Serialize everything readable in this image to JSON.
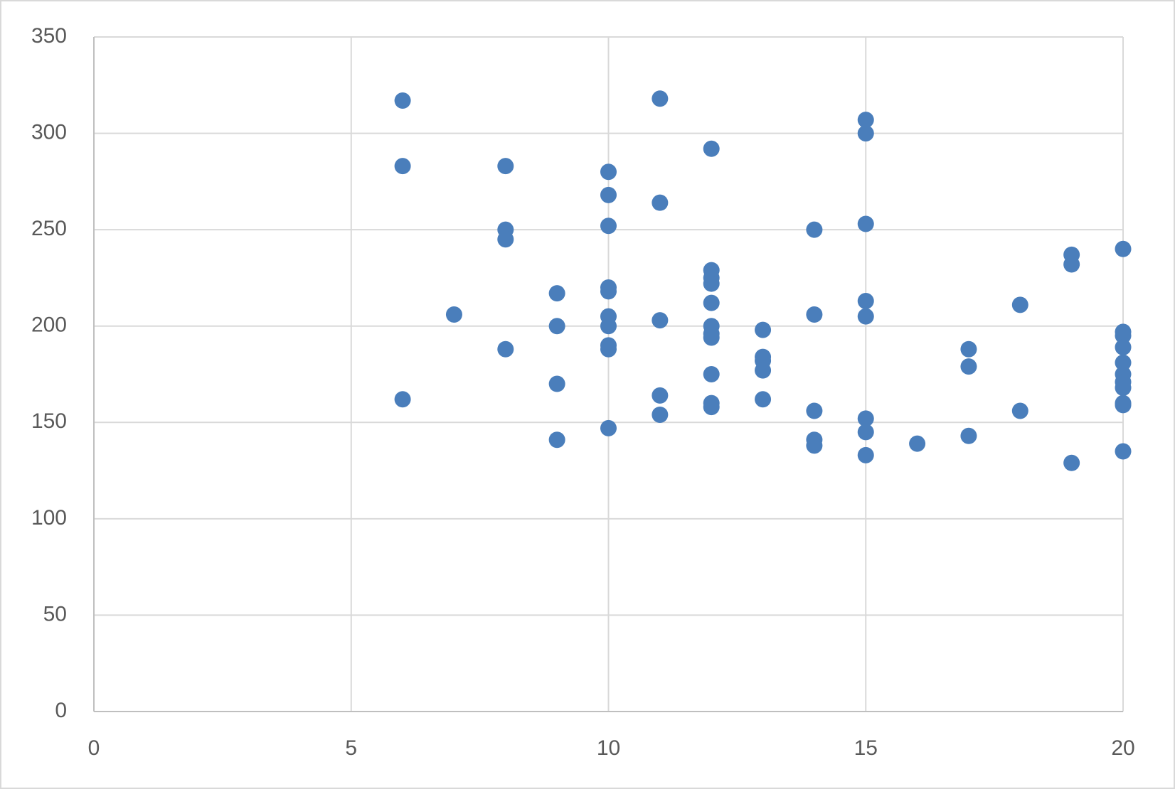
{
  "chart_data": {
    "type": "scatter",
    "color": "#4a7ebb",
    "grid": true,
    "x": [
      6,
      6,
      6,
      7,
      8,
      8,
      8,
      8,
      9,
      9,
      9,
      9,
      10,
      10,
      10,
      10,
      10,
      10,
      10,
      10,
      10,
      10,
      11,
      11,
      11,
      11,
      11,
      12,
      12,
      12,
      12,
      12,
      12,
      12,
      12,
      12,
      12,
      12,
      13,
      13,
      13,
      13,
      13,
      14,
      14,
      14,
      14,
      14,
      15,
      15,
      15,
      15,
      15,
      15,
      15,
      15,
      16,
      17,
      17,
      17,
      18,
      18,
      19,
      19,
      19,
      20,
      20,
      20,
      20,
      20,
      20,
      20,
      20,
      20,
      20,
      20
    ],
    "values": [
      317,
      283,
      162,
      206,
      283,
      250,
      245,
      188,
      217,
      200,
      170,
      141,
      280,
      268,
      252,
      220,
      218,
      205,
      200,
      190,
      188,
      147,
      318,
      264,
      203,
      164,
      154,
      292,
      229,
      225,
      222,
      212,
      200,
      196,
      194,
      175,
      160,
      158,
      198,
      184,
      182,
      177,
      162,
      250,
      206,
      156,
      141,
      138,
      307,
      300,
      253,
      213,
      205,
      152,
      145,
      133,
      139,
      188,
      179,
      143,
      211,
      156,
      237,
      232,
      129,
      240,
      197,
      195,
      189,
      181,
      175,
      171,
      168,
      160,
      159,
      135
    ],
    "xlim": [
      0,
      20
    ],
    "xticks": [
      0,
      5,
      10,
      15,
      20
    ],
    "ylim": [
      0,
      350
    ],
    "yticks": [
      0,
      50,
      100,
      150,
      200,
      250,
      300,
      350
    ]
  }
}
